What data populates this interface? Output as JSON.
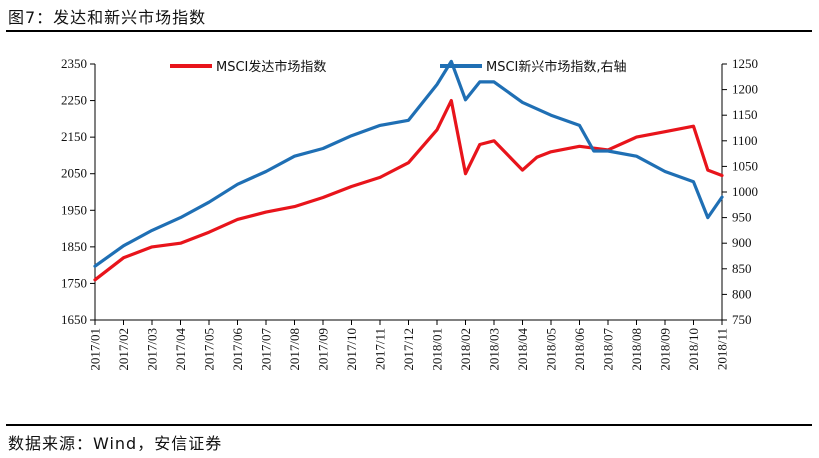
{
  "figure": {
    "title": "图7：发达和新兴市场指数",
    "source": "数据来源：Wind，安信证券"
  },
  "chart_data": {
    "type": "line",
    "x": [
      "2017/01",
      "2017/02",
      "2017/03",
      "2017/04",
      "2017/05",
      "2017/06",
      "2017/07",
      "2017/08",
      "2017/09",
      "2017/10",
      "2017/11",
      "2017/12",
      "2018/01",
      "2018/02",
      "2018/03",
      "2018/04",
      "2018/05",
      "2018/06",
      "2018/07",
      "2018/08",
      "2018/09",
      "2018/10",
      "2018/11"
    ],
    "y_left": {
      "ticks": [
        1650,
        1750,
        1850,
        1950,
        2050,
        2150,
        2250,
        2350
      ],
      "ylim": [
        1650,
        2350
      ]
    },
    "y_right": {
      "ticks": [
        750,
        800,
        850,
        900,
        950,
        1000,
        1050,
        1100,
        1150,
        1200,
        1250
      ],
      "ylim": [
        750,
        1250
      ]
    },
    "legend_placement": "top",
    "grid": false,
    "series": [
      {
        "name": "MSCI发达市场指数",
        "axis": "left",
        "color": "#e8141b",
        "points": [
          [
            "2017/01",
            1760
          ],
          [
            "2017/02",
            1820
          ],
          [
            "2017/03",
            1850
          ],
          [
            "2017/04",
            1860
          ],
          [
            "2017/05",
            1890
          ],
          [
            "2017/06",
            1925
          ],
          [
            "2017/07",
            1945
          ],
          [
            "2017/08",
            1960
          ],
          [
            "2017/09",
            1985
          ],
          [
            "2017/10",
            2015
          ],
          [
            "2017/11",
            2040
          ],
          [
            "2017/12",
            2080
          ],
          [
            "2018/01",
            2170
          ],
          [
            "2018/01",
            2250
          ],
          [
            "2018/02",
            2050
          ],
          [
            "2018/02",
            2130
          ],
          [
            "2018/03",
            2140
          ],
          [
            "2018/04",
            2060
          ],
          [
            "2018/04",
            2095
          ],
          [
            "2018/05",
            2110
          ],
          [
            "2018/06",
            2125
          ],
          [
            "2018/07",
            2115
          ],
          [
            "2018/08",
            2150
          ],
          [
            "2018/09",
            2165
          ],
          [
            "2018/10",
            2180
          ],
          [
            "2018/10",
            2060
          ],
          [
            "2018/11",
            2045
          ]
        ]
      },
      {
        "name": "MSCI新兴市场指数,右轴",
        "axis": "right",
        "color": "#1f6fb4",
        "points": [
          [
            "2017/01",
            855
          ],
          [
            "2017/02",
            895
          ],
          [
            "2017/03",
            925
          ],
          [
            "2017/04",
            950
          ],
          [
            "2017/05",
            980
          ],
          [
            "2017/06",
            1015
          ],
          [
            "2017/07",
            1040
          ],
          [
            "2017/08",
            1070
          ],
          [
            "2017/09",
            1085
          ],
          [
            "2017/10",
            1110
          ],
          [
            "2017/11",
            1130
          ],
          [
            "2017/12",
            1140
          ],
          [
            "2018/01",
            1210
          ],
          [
            "2018/01",
            1255
          ],
          [
            "2018/02",
            1180
          ],
          [
            "2018/02",
            1215
          ],
          [
            "2018/03",
            1215
          ],
          [
            "2018/04",
            1175
          ],
          [
            "2018/05",
            1150
          ],
          [
            "2018/06",
            1130
          ],
          [
            "2018/06",
            1080
          ],
          [
            "2018/07",
            1080
          ],
          [
            "2018/08",
            1070
          ],
          [
            "2018/09",
            1040
          ],
          [
            "2018/10",
            1020
          ],
          [
            "2018/10",
            950
          ],
          [
            "2018/11",
            990
          ]
        ]
      }
    ]
  }
}
